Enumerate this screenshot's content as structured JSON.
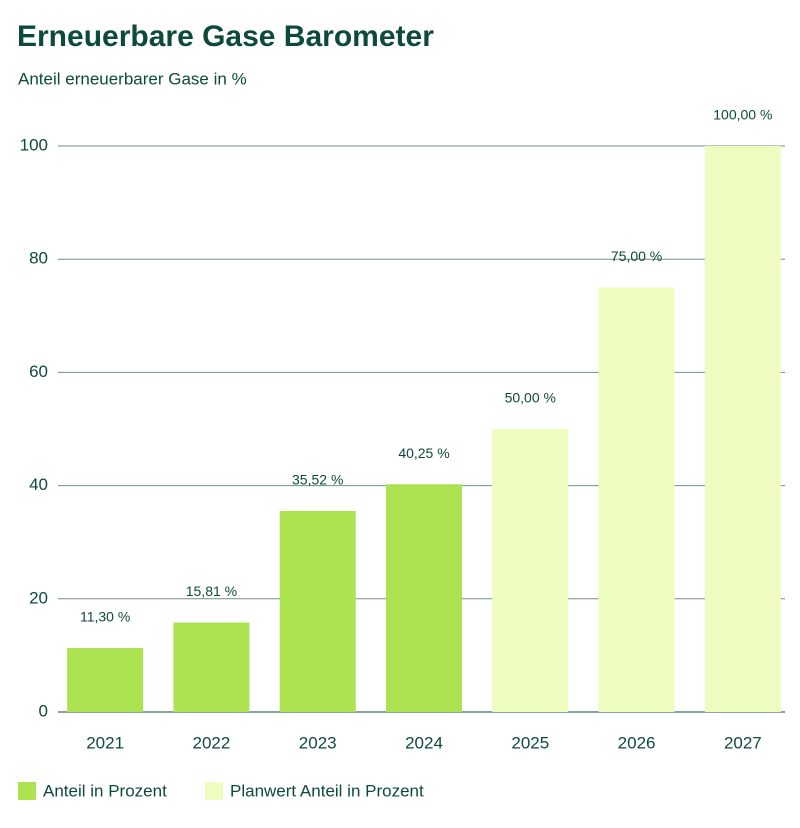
{
  "chart_data": {
    "type": "bar",
    "title": "Erneuerbare Gase Barometer",
    "subtitle": "Anteil erneuerbarer Gase in %",
    "categories": [
      "2021",
      "2022",
      "2023",
      "2024",
      "2025",
      "2026",
      "2027"
    ],
    "series": [
      {
        "name": "Anteil in Prozent",
        "color": "#ade251",
        "values": [
          11.3,
          15.81,
          35.52,
          40.25,
          null,
          null,
          null
        ],
        "value_labels": [
          "11,30 %",
          "15,81 %",
          "35,52 %",
          "40,25 %",
          null,
          null,
          null
        ]
      },
      {
        "name": "Planwert Anteil in Prozent",
        "color": "#eefcbf",
        "values": [
          null,
          null,
          null,
          null,
          50,
          75,
          100
        ],
        "value_labels": [
          null,
          null,
          null,
          null,
          "50,00 %",
          "75,00 %",
          "100,00 %"
        ]
      }
    ],
    "ylim": [
      0,
      100
    ],
    "yticks": [
      0,
      20,
      40,
      60,
      80,
      100
    ],
    "grid": true,
    "legend": "bottom"
  }
}
